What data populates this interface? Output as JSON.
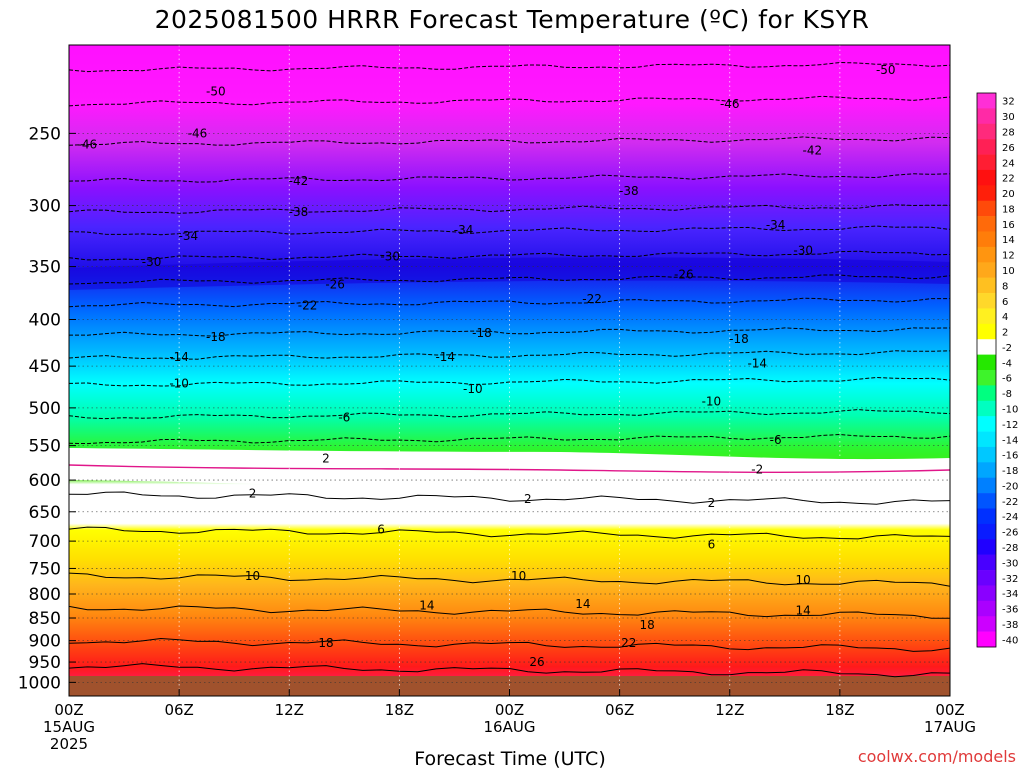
{
  "chart_data": {
    "type": "time-height contour",
    "title": "2025081500 HRRR Forecast Temperature (ºC) for KSYR",
    "xlabel": "Forecast Time (UTC)",
    "ylabel": "",
    "credit": "coolwx.com/models",
    "x_ticks": [
      {
        "hour": 0,
        "l1": "00Z",
        "l2": "15AUG",
        "l3": "2025"
      },
      {
        "hour": 6,
        "l1": "06Z",
        "l2": "",
        "l3": ""
      },
      {
        "hour": 12,
        "l1": "12Z",
        "l2": "",
        "l3": ""
      },
      {
        "hour": 18,
        "l1": "18Z",
        "l2": "",
        "l3": ""
      },
      {
        "hour": 24,
        "l1": "00Z",
        "l2": "16AUG",
        "l3": ""
      },
      {
        "hour": 30,
        "l1": "06Z",
        "l2": "",
        "l3": ""
      },
      {
        "hour": 36,
        "l1": "12Z",
        "l2": "",
        "l3": ""
      },
      {
        "hour": 42,
        "l1": "18Z",
        "l2": "",
        "l3": ""
      },
      {
        "hour": 48,
        "l1": "00Z",
        "l2": "17AUG",
        "l3": ""
      }
    ],
    "xlim": [
      0,
      48
    ],
    "y_ticks": [
      250,
      300,
      350,
      400,
      450,
      500,
      550,
      600,
      650,
      700,
      750,
      800,
      850,
      900,
      950,
      1000
    ],
    "ylim": [
      200,
      1035
    ],
    "y_scale": "log (pressure, hPa)",
    "grid": "dotted",
    "colorbar": {
      "levels": [
        "32",
        "30",
        "28",
        "26",
        "24",
        "22",
        "20",
        "18",
        "16",
        "14",
        "12",
        "10",
        "8",
        "6",
        "4",
        "2",
        "-2",
        "-4",
        "-6",
        "-8",
        "-10",
        "-12",
        "-14",
        "-16",
        "-18",
        "-20",
        "-22",
        "-24",
        "-26",
        "-28",
        "-30",
        "-32",
        "-34",
        "-36",
        "-38",
        "-40"
      ],
      "colors": [
        "#ff2fd6",
        "#ff2aa6",
        "#ff2a7c",
        "#ff2055",
        "#ff1e33",
        "#ff1010",
        "#ff1f0a",
        "#ff4a0a",
        "#ff6a0a",
        "#ff7d0a",
        "#ff9510",
        "#ffa81a",
        "#ffc020",
        "#ffd82a",
        "#fff020",
        "#ffff00",
        "#ffffff",
        "#25e800",
        "#3ef32b",
        "#00ff80",
        "#00ffc0",
        "#00ffff",
        "#00e6ff",
        "#00c8ff",
        "#00a6ff",
        "#0080ff",
        "#0055ff",
        "#0030ff",
        "#0a1cff",
        "#2000ff",
        "#4800ff",
        "#6a00ff",
        "#8a00ff",
        "#aa00ff",
        "#cc00ff",
        "#ff00ff"
      ]
    },
    "isotherm_labels": [
      {
        "value": "-50",
        "hour": 8,
        "p": 225
      },
      {
        "value": "-50",
        "hour": 44.5,
        "p": 213
      },
      {
        "value": "-46",
        "hour": 7,
        "p": 250
      },
      {
        "value": "-46",
        "hour": 36,
        "p": 232
      },
      {
        "value": "-46",
        "hour": 1,
        "p": 257
      },
      {
        "value": "-42",
        "hour": 12.5,
        "p": 282
      },
      {
        "value": "-42",
        "hour": 40.5,
        "p": 261
      },
      {
        "value": "-38",
        "hour": 12.5,
        "p": 305
      },
      {
        "value": "-38",
        "hour": 30.5,
        "p": 289
      },
      {
        "value": "-34",
        "hour": 6.5,
        "p": 324
      },
      {
        "value": "-34",
        "hour": 21.5,
        "p": 319
      },
      {
        "value": "-34",
        "hour": 38.5,
        "p": 315
      },
      {
        "value": "-30",
        "hour": 4.5,
        "p": 346
      },
      {
        "value": "-30",
        "hour": 17.5,
        "p": 341
      },
      {
        "value": "-30",
        "hour": 40,
        "p": 336
      },
      {
        "value": "-26",
        "hour": 14.5,
        "p": 366
      },
      {
        "value": "-26",
        "hour": 33.5,
        "p": 357
      },
      {
        "value": "-22",
        "hour": 13,
        "p": 386
      },
      {
        "value": "-22",
        "hour": 28.5,
        "p": 380
      },
      {
        "value": "-18",
        "hour": 8,
        "p": 418
      },
      {
        "value": "-18",
        "hour": 22.5,
        "p": 414
      },
      {
        "value": "-18",
        "hour": 36.5,
        "p": 420
      },
      {
        "value": "-14",
        "hour": 6,
        "p": 440
      },
      {
        "value": "-14",
        "hour": 20.5,
        "p": 440
      },
      {
        "value": "-14",
        "hour": 37.5,
        "p": 447
      },
      {
        "value": "-10",
        "hour": 6,
        "p": 470
      },
      {
        "value": "-10",
        "hour": 22,
        "p": 477
      },
      {
        "value": "-10",
        "hour": 35,
        "p": 492
      },
      {
        "value": "-6",
        "hour": 15,
        "p": 512
      },
      {
        "value": "-6",
        "hour": 38.5,
        "p": 542
      },
      {
        "value": "2",
        "hour": 14,
        "p": 568
      },
      {
        "value": "-2",
        "hour": 37.5,
        "p": 584
      },
      {
        "value": "2",
        "hour": 10,
        "p": 621
      },
      {
        "value": "2",
        "hour": 25,
        "p": 629
      },
      {
        "value": "2",
        "hour": 35,
        "p": 636
      },
      {
        "value": "6",
        "hour": 17,
        "p": 680
      },
      {
        "value": "6",
        "hour": 35,
        "p": 706
      },
      {
        "value": "10",
        "hour": 10,
        "p": 764
      },
      {
        "value": "10",
        "hour": 24.5,
        "p": 764
      },
      {
        "value": "10",
        "hour": 40,
        "p": 772
      },
      {
        "value": "14",
        "hour": 19.5,
        "p": 824
      },
      {
        "value": "14",
        "hour": 28,
        "p": 820
      },
      {
        "value": "14",
        "hour": 40,
        "p": 834
      },
      {
        "value": "18",
        "hour": 14,
        "p": 905
      },
      {
        "value": "18",
        "hour": 31.5,
        "p": 865
      },
      {
        "value": "22",
        "hour": 30.5,
        "p": 905
      },
      {
        "value": "26",
        "hour": 25.5,
        "p": 950
      }
    ]
  }
}
